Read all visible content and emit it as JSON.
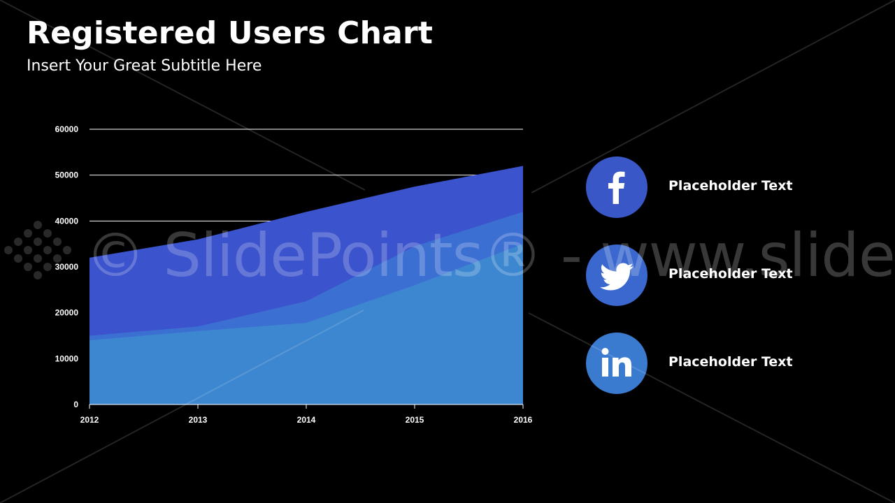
{
  "slide": {
    "title": "Registered Users Chart",
    "subtitle": "Insert Your Great Subtitle Here"
  },
  "chart_data": {
    "type": "area",
    "x": [
      "2012",
      "2013",
      "2014",
      "2015",
      "2016"
    ],
    "series": [
      {
        "values": [
          32000,
          36000,
          42000,
          47500,
          52000
        ],
        "color": "#3b53cc"
      },
      {
        "values": [
          15000,
          17000,
          22500,
          34500,
          42000
        ],
        "color": "#3c6fd2"
      },
      {
        "values": [
          14000,
          16000,
          17800,
          26000,
          35000
        ],
        "color": "#3d87d0"
      }
    ],
    "yticks": [
      "0",
      "10000",
      "20000",
      "30000",
      "40000",
      "50000",
      "60000"
    ],
    "ylim": [
      0,
      60000
    ],
    "grid": true,
    "legend": "none"
  },
  "social": [
    {
      "label": "Placeholder Text",
      "icon": "facebook-icon",
      "color": "#3a57c8"
    },
    {
      "label": "Placeholder Text",
      "icon": "twitter-icon",
      "color": "#3a68cf"
    },
    {
      "label": "Placeholder Text",
      "icon": "linkedin-icon",
      "color": "#3a7bd0"
    }
  ],
  "watermark": {
    "text": "© SlidePoints® - www.slidepoints.co"
  }
}
